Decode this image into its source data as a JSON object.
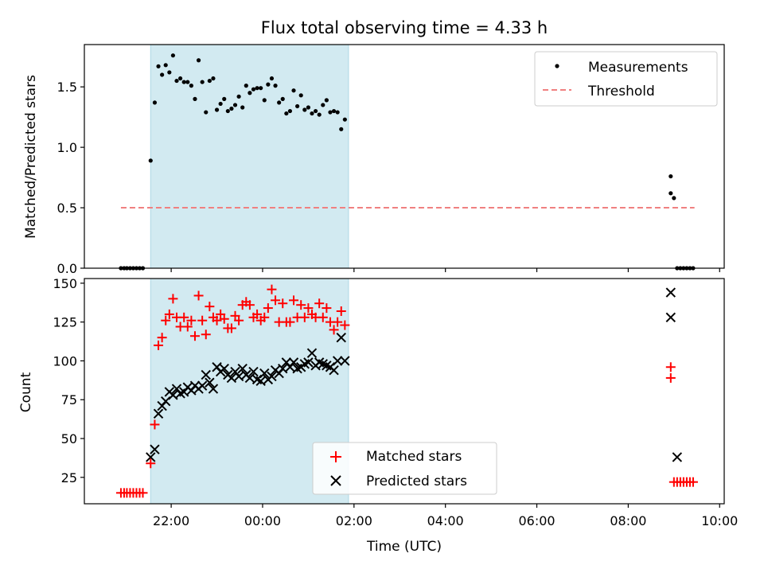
{
  "title": "Flux total observing time = 4.33 h",
  "xlabel": "Time (UTC)",
  "colors": {
    "measurement": "#000000",
    "threshold": "#f08080",
    "matched": "#ff0000",
    "predicted": "#000000",
    "shade": "#add8e6"
  },
  "chart_data": [
    {
      "type": "scatter",
      "ylabel": "Matched/Predicted stars",
      "ylim": [
        0,
        1.85
      ],
      "xlim": [
        20.1,
        34.1
      ],
      "yticks": [
        0.0,
        0.5,
        1.0,
        1.5
      ],
      "ytick_labels": [
        "0.0",
        "0.5",
        "1.0",
        "1.5"
      ],
      "shaded_interval": [
        21.55,
        25.88
      ],
      "legend": {
        "placement": "top-right",
        "entries": [
          "Measurements",
          "Threshold"
        ]
      },
      "threshold": {
        "name": "Threshold",
        "y": 0.5,
        "x_range": [
          20.9,
          33.45
        ]
      },
      "series": [
        {
          "name": "Measurements",
          "marker": "dot",
          "points": [
            [
              20.9,
              0
            ],
            [
              20.97,
              0
            ],
            [
              21.03,
              0
            ],
            [
              21.1,
              0
            ],
            [
              21.17,
              0
            ],
            [
              21.24,
              0
            ],
            [
              21.31,
              0
            ],
            [
              21.38,
              0
            ],
            [
              21.55,
              0.89
            ],
            [
              21.64,
              1.37
            ],
            [
              21.72,
              1.67
            ],
            [
              21.8,
              1.6
            ],
            [
              21.88,
              1.68
            ],
            [
              21.96,
              1.62
            ],
            [
              22.04,
              1.76
            ],
            [
              22.12,
              1.55
            ],
            [
              22.2,
              1.57
            ],
            [
              22.28,
              1.54
            ],
            [
              22.36,
              1.54
            ],
            [
              22.44,
              1.51
            ],
            [
              22.52,
              1.4
            ],
            [
              22.6,
              1.72
            ],
            [
              22.68,
              1.54
            ],
            [
              22.76,
              1.29
            ],
            [
              22.84,
              1.55
            ],
            [
              22.92,
              1.57
            ],
            [
              23.0,
              1.31
            ],
            [
              23.08,
              1.36
            ],
            [
              23.16,
              1.4
            ],
            [
              23.24,
              1.3
            ],
            [
              23.32,
              1.32
            ],
            [
              23.4,
              1.35
            ],
            [
              23.48,
              1.42
            ],
            [
              23.56,
              1.33
            ],
            [
              23.64,
              1.51
            ],
            [
              23.72,
              1.45
            ],
            [
              23.8,
              1.48
            ],
            [
              23.88,
              1.49
            ],
            [
              23.96,
              1.49
            ],
            [
              24.04,
              1.39
            ],
            [
              24.12,
              1.52
            ],
            [
              24.2,
              1.57
            ],
            [
              24.28,
              1.51
            ],
            [
              24.36,
              1.37
            ],
            [
              24.44,
              1.4
            ],
            [
              24.52,
              1.28
            ],
            [
              24.6,
              1.3
            ],
            [
              24.68,
              1.47
            ],
            [
              24.76,
              1.34
            ],
            [
              24.84,
              1.43
            ],
            [
              24.92,
              1.31
            ],
            [
              25.0,
              1.33
            ],
            [
              25.08,
              1.28
            ],
            [
              25.16,
              1.3
            ],
            [
              25.24,
              1.27
            ],
            [
              25.32,
              1.35
            ],
            [
              25.4,
              1.39
            ],
            [
              25.48,
              1.29
            ],
            [
              25.56,
              1.3
            ],
            [
              25.64,
              1.29
            ],
            [
              25.72,
              1.15
            ],
            [
              25.8,
              1.23
            ],
            [
              32.93,
              0.76
            ],
            [
              32.93,
              0.62
            ],
            [
              33.0,
              0.58
            ],
            [
              33.07,
              0
            ],
            [
              33.14,
              0
            ],
            [
              33.21,
              0
            ],
            [
              33.28,
              0
            ],
            [
              33.35,
              0
            ],
            [
              33.42,
              0
            ]
          ]
        }
      ]
    },
    {
      "type": "scatter",
      "ylabel": "Count",
      "ylim": [
        8,
        153
      ],
      "xlim": [
        20.1,
        34.1
      ],
      "yticks": [
        25,
        50,
        75,
        100,
        125,
        150
      ],
      "ytick_labels": [
        "25",
        "50",
        "75",
        "100",
        "125",
        "150"
      ],
      "xticks": [
        22,
        24,
        26,
        28,
        30,
        32,
        34
      ],
      "xtick_labels": [
        "22:00",
        "00:00",
        "02:00",
        "04:00",
        "06:00",
        "08:00",
        "10:00"
      ],
      "shaded_interval": [
        21.55,
        25.88
      ],
      "legend": {
        "placement": "lower-center",
        "entries": [
          "Matched stars",
          "Predicted stars"
        ]
      },
      "series": [
        {
          "name": "Matched stars",
          "marker": "plus",
          "points": [
            [
              20.9,
              15
            ],
            [
              20.97,
              15
            ],
            [
              21.03,
              15
            ],
            [
              21.1,
              15
            ],
            [
              21.17,
              15
            ],
            [
              21.24,
              15
            ],
            [
              21.31,
              15
            ],
            [
              21.38,
              15
            ],
            [
              21.55,
              34
            ],
            [
              21.64,
              59
            ],
            [
              21.72,
              110
            ],
            [
              21.8,
              115
            ],
            [
              21.88,
              126
            ],
            [
              21.96,
              130
            ],
            [
              22.04,
              140
            ],
            [
              22.12,
              128
            ],
            [
              22.2,
              122
            ],
            [
              22.28,
              128
            ],
            [
              22.36,
              122
            ],
            [
              22.44,
              126
            ],
            [
              22.52,
              116
            ],
            [
              22.6,
              142
            ],
            [
              22.68,
              126
            ],
            [
              22.76,
              117
            ],
            [
              22.84,
              135
            ],
            [
              22.92,
              128
            ],
            [
              23.0,
              126
            ],
            [
              23.08,
              130
            ],
            [
              23.16,
              127
            ],
            [
              23.24,
              121
            ],
            [
              23.32,
              121
            ],
            [
              23.4,
              129
            ],
            [
              23.48,
              126
            ],
            [
              23.56,
              136
            ],
            [
              23.64,
              138
            ],
            [
              23.72,
              136
            ],
            [
              23.8,
              128
            ],
            [
              23.88,
              130
            ],
            [
              23.96,
              126
            ],
            [
              24.04,
              128
            ],
            [
              24.12,
              134
            ],
            [
              24.2,
              146
            ],
            [
              24.28,
              139
            ],
            [
              24.36,
              125
            ],
            [
              24.44,
              137
            ],
            [
              24.52,
              125
            ],
            [
              24.6,
              125
            ],
            [
              24.68,
              139
            ],
            [
              24.76,
              128
            ],
            [
              24.84,
              136
            ],
            [
              24.92,
              128
            ],
            [
              25.0,
              134
            ],
            [
              25.08,
              130
            ],
            [
              25.16,
              128
            ],
            [
              25.24,
              137
            ],
            [
              25.32,
              128
            ],
            [
              25.4,
              134
            ],
            [
              25.48,
              125
            ],
            [
              25.56,
              120
            ],
            [
              25.64,
              125
            ],
            [
              25.72,
              132
            ],
            [
              25.8,
              123
            ],
            [
              32.93,
              96
            ],
            [
              32.93,
              89
            ],
            [
              33.0,
              22
            ],
            [
              33.07,
              22
            ],
            [
              33.14,
              22
            ],
            [
              33.21,
              22
            ],
            [
              33.28,
              22
            ],
            [
              33.35,
              22
            ],
            [
              33.42,
              22
            ]
          ]
        },
        {
          "name": "Predicted stars",
          "marker": "x",
          "points": [
            [
              21.55,
              38
            ],
            [
              21.64,
              43
            ],
            [
              21.72,
              66
            ],
            [
              21.8,
              71
            ],
            [
              21.88,
              74
            ],
            [
              21.96,
              80
            ],
            [
              22.04,
              78
            ],
            [
              22.12,
              82
            ],
            [
              22.2,
              79
            ],
            [
              22.28,
              80
            ],
            [
              22.36,
              83
            ],
            [
              22.44,
              81
            ],
            [
              22.52,
              84
            ],
            [
              22.6,
              82
            ],
            [
              22.68,
              84
            ],
            [
              22.76,
              91
            ],
            [
              22.84,
              86
            ],
            [
              22.92,
              82
            ],
            [
              23.0,
              96
            ],
            [
              23.08,
              93
            ],
            [
              23.16,
              95
            ],
            [
              23.24,
              91
            ],
            [
              23.32,
              89
            ],
            [
              23.4,
              93
            ],
            [
              23.48,
              90
            ],
            [
              23.56,
              95
            ],
            [
              23.64,
              91
            ],
            [
              23.72,
              89
            ],
            [
              23.8,
              93
            ],
            [
              23.88,
              88
            ],
            [
              23.96,
              87
            ],
            [
              24.04,
              92
            ],
            [
              24.12,
              88
            ],
            [
              24.2,
              90
            ],
            [
              24.28,
              94
            ],
            [
              24.36,
              92
            ],
            [
              24.44,
              95
            ],
            [
              24.52,
              99
            ],
            [
              24.6,
              96
            ],
            [
              24.68,
              99
            ],
            [
              24.76,
              95
            ],
            [
              24.84,
              96
            ],
            [
              24.92,
              98
            ],
            [
              25.0,
              99
            ],
            [
              25.08,
              105
            ],
            [
              25.16,
              97
            ],
            [
              25.24,
              99
            ],
            [
              25.32,
              98
            ],
            [
              25.4,
              97
            ],
            [
              25.48,
              96
            ],
            [
              25.56,
              94
            ],
            [
              25.64,
              100
            ],
            [
              25.72,
              115
            ],
            [
              25.8,
              100
            ],
            [
              32.93,
              144
            ],
            [
              32.93,
              128
            ],
            [
              33.07,
              38
            ]
          ]
        }
      ]
    }
  ]
}
